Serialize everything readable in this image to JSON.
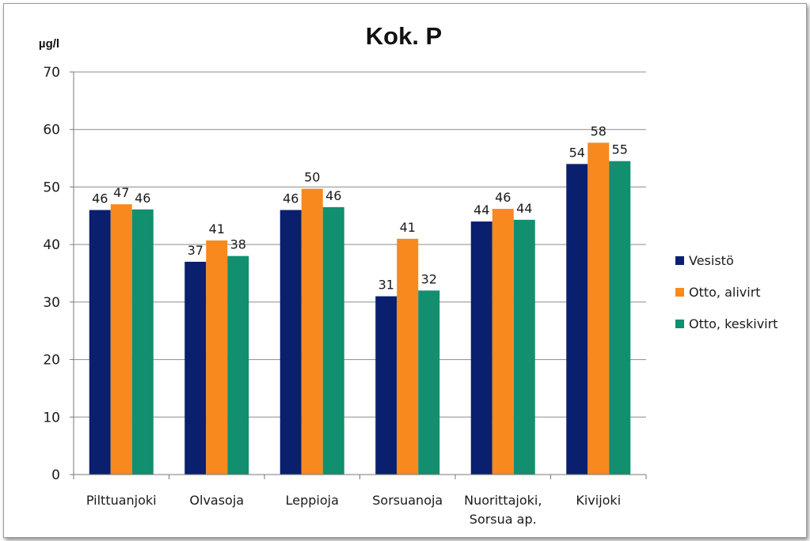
{
  "chart_data": {
    "type": "bar",
    "title": "Kok. P",
    "ylabel": "µg/l",
    "xlabel": "",
    "ylim": [
      0,
      70
    ],
    "yticks": [
      0,
      10,
      20,
      30,
      40,
      50,
      60,
      70
    ],
    "grid": true,
    "legend_position": "right",
    "categories": [
      [
        "Pilttuanjoki"
      ],
      [
        "Olvasoja"
      ],
      [
        "Leppioja"
      ],
      [
        "Sorsuanoja"
      ],
      [
        "Nuorittajoki,",
        "Sorsua ap."
      ],
      [
        "Kivijoki"
      ]
    ],
    "series": [
      {
        "name": "Vesistö",
        "color": "#0a1f6e",
        "values": [
          46,
          37,
          46,
          31,
          44,
          54
        ],
        "labels": [
          "46",
          "37",
          "46",
          "31",
          "44",
          "54"
        ]
      },
      {
        "name": "Otto, alivirt",
        "color": "#f7891f",
        "values": [
          47,
          40.7,
          49.7,
          41,
          46.2,
          57.7
        ],
        "labels": [
          "47",
          "41",
          "50",
          "41",
          "46",
          "58"
        ]
      },
      {
        "name": "Otto, keskivirt",
        "color": "#128f6e",
        "values": [
          46.1,
          38,
          46.5,
          32,
          44.3,
          54.5
        ],
        "labels": [
          "46",
          "38",
          "46",
          "32",
          "44",
          "55"
        ]
      }
    ]
  }
}
